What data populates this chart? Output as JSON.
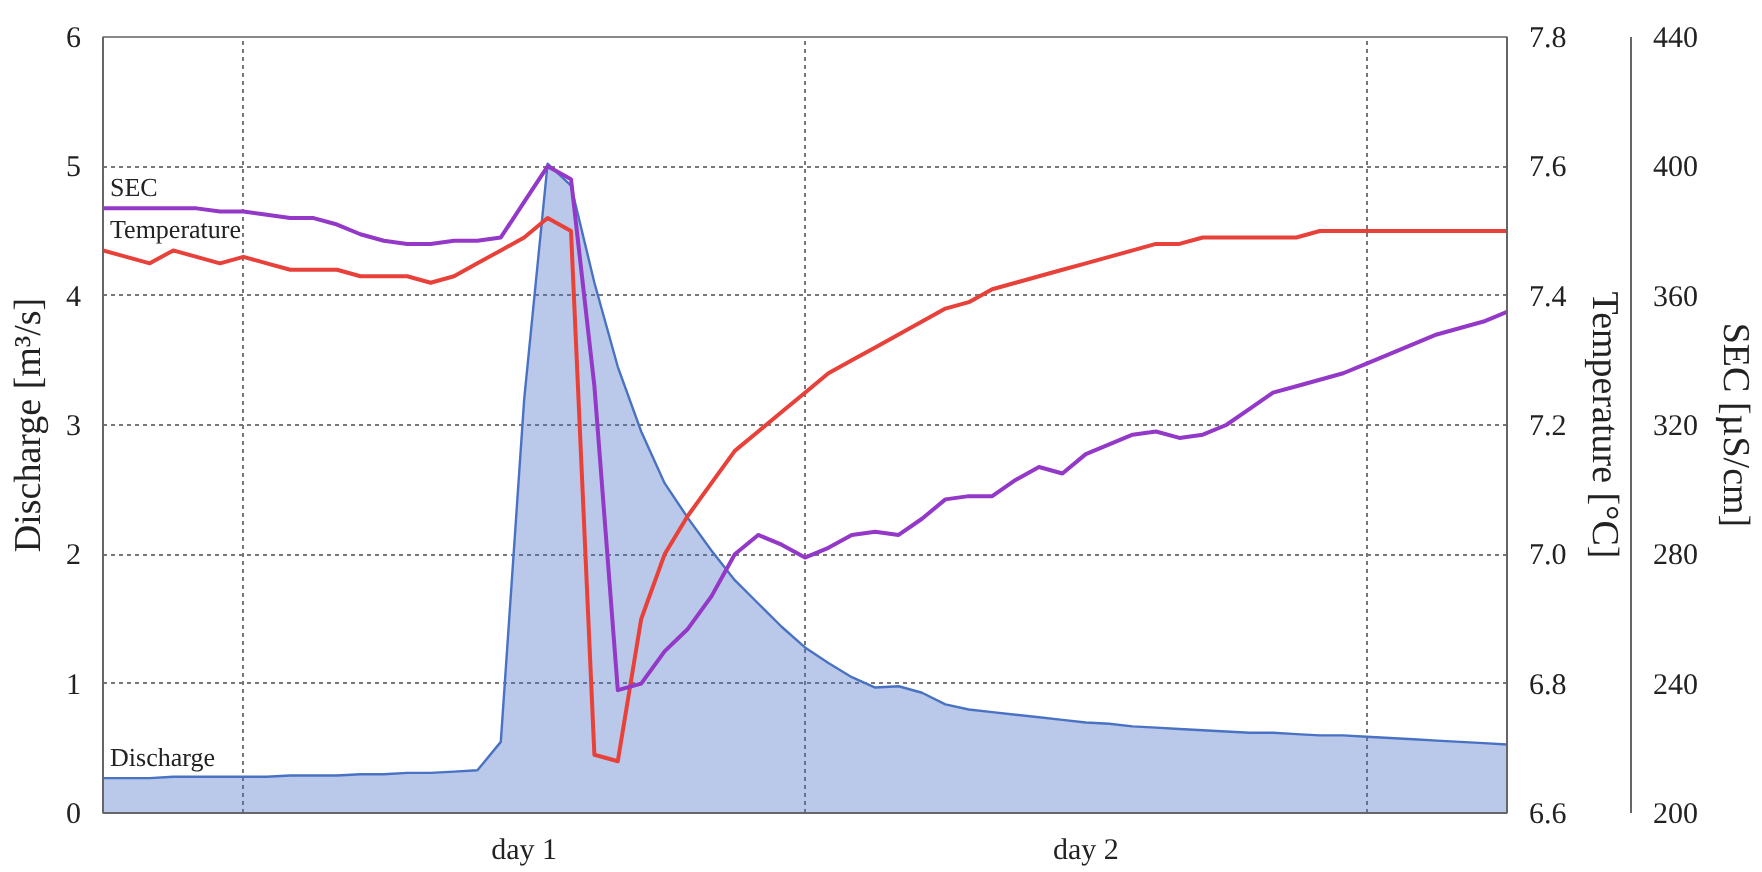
{
  "chart_data": {
    "type": "line",
    "ylabel": "Discharge [m³/s]",
    "y2label": "Temperature [°C]",
    "y3label": "SEC [µS/cm]",
    "categories": [
      null,
      null,
      null,
      null,
      null,
      null,
      null,
      null,
      null,
      null,
      null,
      null,
      null,
      null,
      null,
      null,
      null,
      null,
      "day 1",
      null,
      null,
      null,
      null,
      null,
      null,
      null,
      null,
      null,
      null,
      null,
      null,
      null,
      null,
      null,
      null,
      null,
      null,
      null,
      null,
      null,
      null,
      null,
      "day 2",
      null,
      null,
      null,
      null,
      null,
      null,
      null,
      null,
      null,
      null,
      null,
      null,
      null,
      null,
      null,
      null,
      null,
      null
    ],
    "ylim": [
      0,
      6
    ],
    "yticks": [
      0,
      1,
      2,
      3,
      4,
      5,
      6
    ],
    "y2lim": [
      6.6,
      7.8
    ],
    "y2ticks": [
      {
        "value": 6.6,
        "label": "6.6"
      },
      {
        "value": 6.8,
        "label": "6.8"
      },
      {
        "value": 7.0,
        "label": "7.0"
      },
      {
        "value": 7.2,
        "label": "7.2"
      },
      {
        "value": 7.4,
        "label": "7.4"
      },
      {
        "value": 7.6,
        "label": "7.6"
      },
      {
        "value": 7.8,
        "label": "7.8"
      }
    ],
    "y3lim": [
      200,
      440
    ],
    "y3ticks": [
      200,
      240,
      280,
      320,
      360,
      400,
      440
    ],
    "grid": true,
    "series": [
      {
        "name": "Discharge",
        "type": "area",
        "color": "#4a72c4",
        "values": [
          0.27,
          0.27,
          0.27,
          0.28,
          0.28,
          0.28,
          0.28,
          0.28,
          0.29,
          0.29,
          0.29,
          0.3,
          0.3,
          0.31,
          0.31,
          0.32,
          0.33,
          0.55,
          3.2,
          5.02,
          4.85,
          4.1,
          3.45,
          2.95,
          2.55,
          2.28,
          2.03,
          1.8,
          1.62,
          1.44,
          1.28,
          1.16,
          1.05,
          0.97,
          0.98,
          0.93,
          0.84,
          0.8,
          0.78,
          0.76,
          0.74,
          0.72,
          0.7,
          0.69,
          0.67,
          0.66,
          0.65,
          0.64,
          0.63,
          0.62,
          0.62,
          0.61,
          0.6,
          0.6,
          0.59,
          0.58,
          0.57,
          0.56,
          0.55,
          0.54,
          0.53
        ]
      },
      {
        "name": "Temperature",
        "axis": "y2",
        "color": "#e8413a",
        "values": [
          7.47,
          7.46,
          7.45,
          7.47,
          7.46,
          7.45,
          7.46,
          7.45,
          7.44,
          7.44,
          7.44,
          7.43,
          7.43,
          7.43,
          7.42,
          7.43,
          7.45,
          7.47,
          7.49,
          7.52,
          7.5,
          6.69,
          6.68,
          6.9,
          7.0,
          7.06,
          7.11,
          7.16,
          7.19,
          7.22,
          7.25,
          7.28,
          7.3,
          7.32,
          7.34,
          7.36,
          7.38,
          7.39,
          7.41,
          7.42,
          7.43,
          7.44,
          7.45,
          7.46,
          7.47,
          7.48,
          7.48,
          7.49,
          7.49,
          7.49,
          7.49,
          7.49,
          7.5,
          7.5,
          7.5,
          7.5,
          7.5,
          7.5,
          7.5,
          7.5,
          7.5
        ]
      },
      {
        "name": "SEC",
        "axis": "y3",
        "color": "#9438c8",
        "values": [
          387,
          387,
          387,
          387,
          387,
          386,
          386,
          385,
          384,
          384,
          382,
          379,
          377,
          376,
          376,
          377,
          377,
          378,
          389,
          400,
          396,
          332,
          238,
          240,
          250,
          257,
          267,
          280,
          286,
          283,
          279,
          282,
          286,
          287,
          286,
          291,
          297,
          298,
          298,
          303,
          307,
          305,
          311,
          314,
          317,
          318,
          316,
          317,
          320,
          325,
          330,
          332,
          334,
          336,
          339,
          342,
          345,
          348,
          350,
          352,
          355
        ]
      }
    ]
  }
}
